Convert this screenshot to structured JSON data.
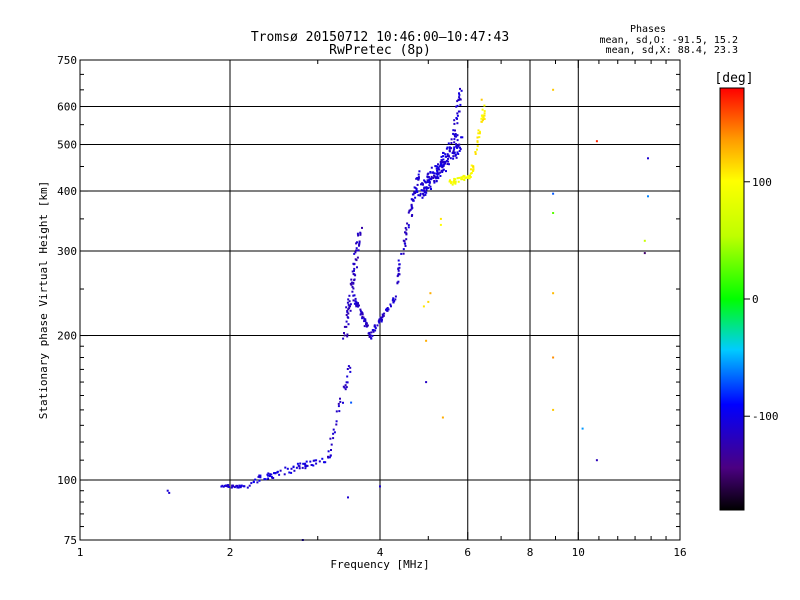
{
  "chart_data": {
    "type": "scatter",
    "title": "Tromsø 20150712 10:46:00–10:47:43",
    "subtitle": "RwPretec (8p)",
    "xlabel": "Frequency [MHz]",
    "ylabel": "Stationary phase Virtual Height [km]",
    "xscale": "log",
    "yscale": "log",
    "xlim": [
      1,
      16
    ],
    "ylim": [
      75,
      750
    ],
    "x_ticks": [
      1,
      2,
      4,
      6,
      8,
      10,
      16
    ],
    "x_grid": [
      2,
      4,
      6,
      8,
      10
    ],
    "y_ticks": [
      75,
      100,
      200,
      300,
      400,
      500,
      600,
      750
    ],
    "y_grid": [
      100,
      200,
      300,
      400,
      500,
      600
    ],
    "phase_stats": {
      "heading": "Phases",
      "line_o": "mean, sd,O: -91.5, 15.2",
      "line_x": "mean, sd,X:  88.4, 23.3"
    },
    "colorbar": {
      "label": "[deg]",
      "range": [
        -180,
        180
      ],
      "ticks": [
        100,
        0,
        -100
      ]
    },
    "series": [
      {
        "name": "O-mode traces",
        "segments": [
          {
            "f": [
              1.9,
              2.2
            ],
            "h": [
              97,
              97
            ],
            "phase": -110,
            "count": 30,
            "spread": 0.012
          },
          {
            "f": [
              2.2,
              3.2
            ],
            "h": [
              99,
              112
            ],
            "phase": -105,
            "count": 70,
            "spread": 0.035
          },
          {
            "f": [
              3.15,
              3.5
            ],
            "h": [
              112,
              175
            ],
            "phase": -115,
            "count": 30,
            "spread": 0.04
          },
          {
            "f": [
              3.4,
              3.65
            ],
            "h": [
              200,
              330
            ],
            "phase": -118,
            "count": 70,
            "spread": 0.05
          },
          {
            "f": [
              3.55,
              3.85
            ],
            "h": [
              240,
              198
            ],
            "phase": -115,
            "count": 50,
            "spread": 0.03
          },
          {
            "f": [
              3.85,
              4.3
            ],
            "h": [
              203,
              240
            ],
            "phase": -112,
            "count": 40,
            "spread": 0.025
          },
          {
            "f": [
              4.3,
              4.8
            ],
            "h": [
              255,
              440
            ],
            "phase": -112,
            "count": 70,
            "spread": 0.035
          },
          {
            "f": [
              4.8,
              5.8
            ],
            "h": [
              395,
              510
            ],
            "phase": -108,
            "count": 180,
            "spread": 0.08
          },
          {
            "f": [
              5.6,
              5.8
            ],
            "h": [
              500,
              650
            ],
            "phase": -110,
            "count": 30,
            "spread": 0.04
          }
        ],
        "points": [
          {
            "f": 1.5,
            "h": 95,
            "phase": -110
          },
          {
            "f": 1.51,
            "h": 94,
            "phase": -110
          },
          {
            "f": 3.45,
            "h": 92,
            "phase": -110
          },
          {
            "f": 3.5,
            "h": 145,
            "phase": -70
          },
          {
            "f": 4.0,
            "h": 97,
            "phase": -110
          },
          {
            "f": 2.8,
            "h": 75,
            "phase": -110
          },
          {
            "f": 4.95,
            "h": 160,
            "phase": -115
          }
        ]
      },
      {
        "name": "X-mode traces",
        "segments": [
          {
            "f": [
              5.5,
              6.1
            ],
            "h": [
              415,
              430
            ],
            "phase": 95,
            "count": 40,
            "spread": 0.025
          },
          {
            "f": [
              6.1,
              6.5
            ],
            "h": [
              430,
              600
            ],
            "phase": 105,
            "count": 40,
            "spread": 0.04
          }
        ],
        "points": [
          {
            "f": 4.9,
            "h": 230,
            "phase": 110
          },
          {
            "f": 5.0,
            "h": 235,
            "phase": 115
          },
          {
            "f": 5.05,
            "h": 245,
            "phase": 130
          },
          {
            "f": 4.95,
            "h": 195,
            "phase": 130
          },
          {
            "f": 5.3,
            "h": 340,
            "phase": 100
          },
          {
            "f": 5.3,
            "h": 350,
            "phase": 110
          },
          {
            "f": 5.35,
            "h": 135,
            "phase": 130
          },
          {
            "f": 6.4,
            "h": 620,
            "phase": 120
          },
          {
            "f": 8.9,
            "h": 650,
            "phase": 120
          },
          {
            "f": 8.9,
            "h": 395,
            "phase": -70
          },
          {
            "f": 8.9,
            "h": 360,
            "phase": 25
          },
          {
            "f": 8.9,
            "h": 245,
            "phase": 125
          },
          {
            "f": 8.9,
            "h": 180,
            "phase": 140
          },
          {
            "f": 8.9,
            "h": 140,
            "phase": 120
          },
          {
            "f": 10.2,
            "h": 128,
            "phase": -55
          },
          {
            "f": 10.9,
            "h": 508,
            "phase": 170
          },
          {
            "f": 10.9,
            "h": 110,
            "phase": -120
          },
          {
            "f": 13.8,
            "h": 468,
            "phase": -110
          },
          {
            "f": 13.8,
            "h": 390,
            "phase": -60
          },
          {
            "f": 13.6,
            "h": 315,
            "phase": 60
          },
          {
            "f": 13.6,
            "h": 297,
            "phase": -150
          }
        ]
      }
    ]
  }
}
